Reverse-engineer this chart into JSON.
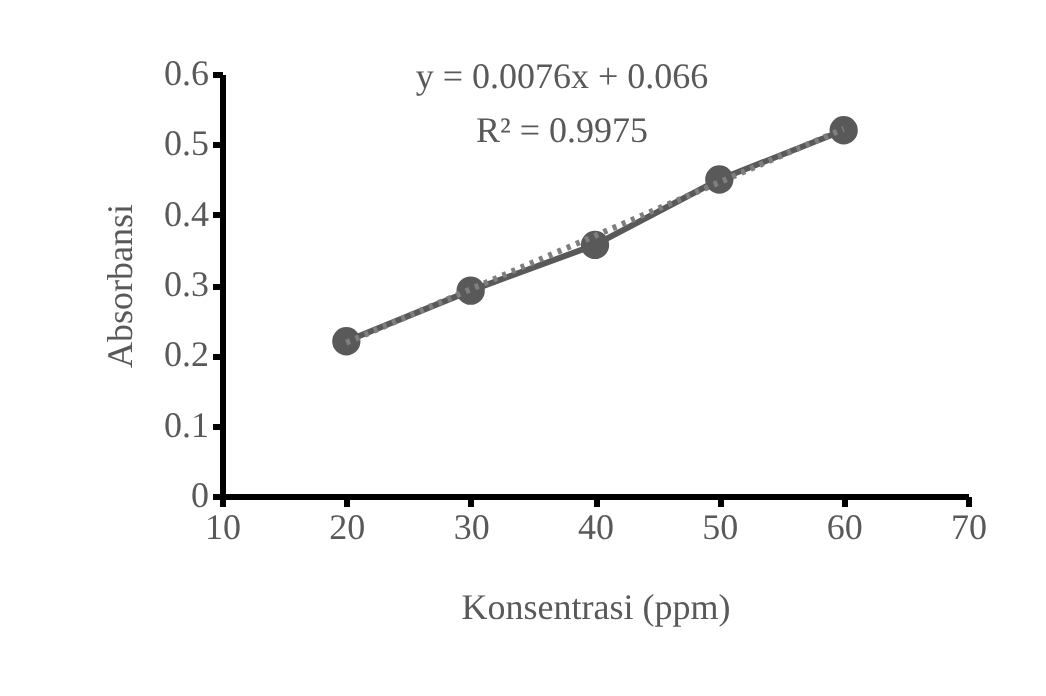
{
  "chart_data": {
    "type": "line",
    "xlabel": "Konsentrasi (ppm)",
    "ylabel": "Absorbansi",
    "annotations": [
      "y = 0.0076x + 0.066",
      "R² = 0.9975"
    ],
    "series": [
      {
        "color": "#595959",
        "marker": "circle",
        "line_style": "solid",
        "x": [
          20,
          30,
          40,
          50,
          60
        ],
        "values": [
          0.22,
          0.292,
          0.357,
          0.45,
          0.52
        ]
      },
      {
        "type": "line",
        "color": "#7f7f7f",
        "marker": "none",
        "line_style": "dotted",
        "x": [
          20,
          60
        ],
        "values": [
          0.218,
          0.522
        ]
      }
    ],
    "xlim": [
      10,
      70
    ],
    "xticks": [
      10,
      20,
      30,
      40,
      50,
      60,
      70
    ],
    "ylim": [
      0,
      0.6
    ],
    "yticks": [
      0,
      0.1,
      0.2,
      0.3,
      0.4,
      0.5,
      0.6
    ],
    "grid": false
  }
}
